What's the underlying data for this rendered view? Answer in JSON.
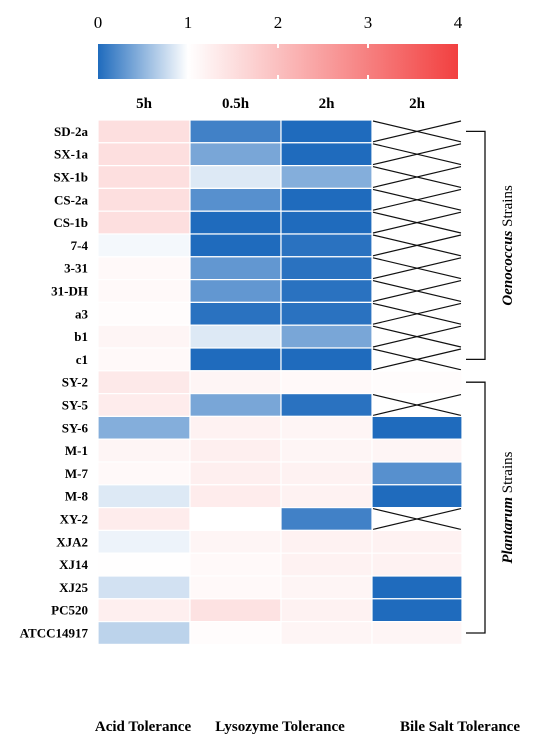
{
  "chart_data": {
    "type": "heatmap",
    "colorbar": {
      "ticks": [
        0,
        1,
        2,
        3,
        4
      ],
      "range": [
        0,
        4
      ],
      "colors": {
        "low": "#1f6bbd",
        "mid": "#ffffff",
        "high": "#f24040"
      }
    },
    "sections": [
      {
        "label": "Acid Tolerance",
        "columns": [
          "5h"
        ]
      },
      {
        "label": "Lysozyme Tolerance",
        "columns": [
          "0.5h",
          "2h"
        ]
      },
      {
        "label": "Bile Salt Tolerance",
        "columns": [
          "2h"
        ]
      }
    ],
    "rows": [
      "SD-2a",
      "SX-1a",
      "SX-1b",
      "CS-2a",
      "CS-1b",
      "7-4",
      "3-31",
      "31-DH",
      "a3",
      "b1",
      "c1",
      "SY-2",
      "SY-5",
      "SY-6",
      "M-1",
      "M-7",
      "M-8",
      "XY-2",
      "XJA2",
      "XJ14",
      "XJ25",
      "PC520",
      "ATCC14917"
    ],
    "values": [
      [
        1.5,
        0.15,
        0.0,
        null
      ],
      [
        1.5,
        0.4,
        0.0,
        null
      ],
      [
        1.5,
        0.85,
        0.45,
        null
      ],
      [
        1.5,
        0.25,
        0.0,
        null
      ],
      [
        1.5,
        0.0,
        0.0,
        null
      ],
      [
        0.95,
        0.0,
        0.05,
        null
      ],
      [
        1.1,
        0.3,
        0.05,
        null
      ],
      [
        1.1,
        0.3,
        0.05,
        null
      ],
      [
        1.05,
        0.05,
        0.05,
        null
      ],
      [
        1.15,
        0.85,
        0.4,
        null
      ],
      [
        1.1,
        0.0,
        0.0,
        null
      ],
      [
        1.35,
        1.15,
        1.1,
        1.05
      ],
      [
        1.3,
        0.4,
        0.05,
        null
      ],
      [
        0.45,
        1.2,
        1.15,
        0.0
      ],
      [
        1.15,
        1.25,
        1.15,
        1.15
      ],
      [
        1.1,
        1.25,
        1.2,
        0.25
      ],
      [
        0.85,
        1.3,
        1.2,
        0.0
      ],
      [
        1.3,
        1.0,
        0.15,
        null
      ],
      [
        0.92,
        1.15,
        1.2,
        1.2
      ],
      [
        1.02,
        1.1,
        1.2,
        1.2
      ],
      [
        0.8,
        1.1,
        1.15,
        0.0
      ],
      [
        1.25,
        1.45,
        1.2,
        0.0
      ],
      [
        0.7,
        1.05,
        1.15,
        1.15
      ]
    ],
    "groups": [
      {
        "label_em": "Oenococcus",
        "label_rest": " Strains",
        "first_row": 0,
        "last_row": 10
      },
      {
        "label_em": "Plantarum",
        "label_rest": " Strains",
        "first_row": 11,
        "last_row": 22
      }
    ]
  }
}
